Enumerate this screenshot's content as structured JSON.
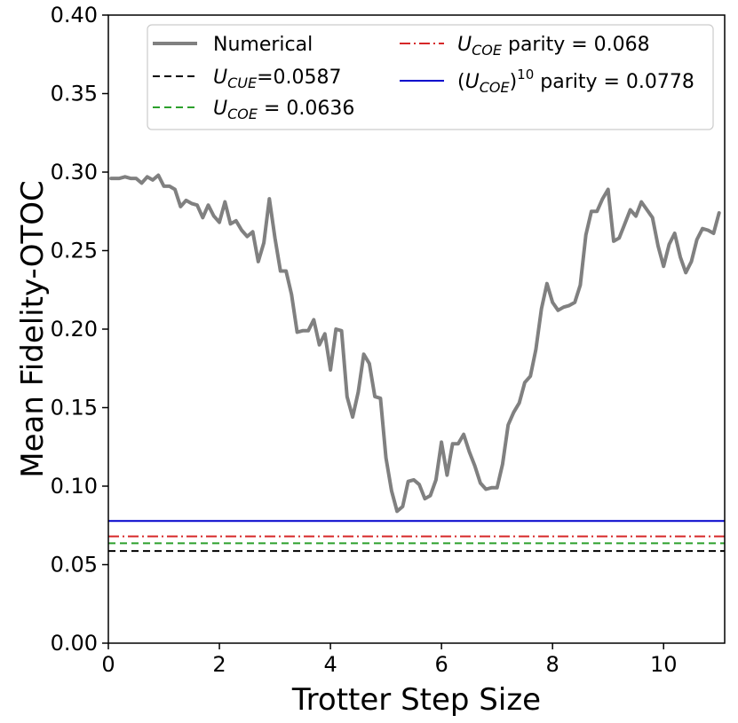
{
  "chart_data": {
    "type": "line",
    "xlabel": "Trotter Step Size",
    "ylabel": "Mean Fidelity-OTOC",
    "xlim": [
      0,
      11.1
    ],
    "ylim": [
      0,
      0.4
    ],
    "x_ticks": [
      0,
      2,
      4,
      6,
      8,
      10
    ],
    "x_tick_labels": [
      "0",
      "2",
      "4",
      "6",
      "8",
      "10"
    ],
    "y_ticks": [
      0,
      0.05,
      0.1,
      0.15,
      0.2,
      0.25,
      0.3,
      0.35,
      0.4
    ],
    "y_tick_labels": [
      "0.00",
      "0.05",
      "0.10",
      "0.15",
      "0.20",
      "0.25",
      "0.30",
      "0.35",
      "0.40"
    ],
    "grid": false,
    "legend_position": "top",
    "series": [
      {
        "name": "Numerical",
        "color": "#808080",
        "style": "solid-thick",
        "x": [
          0.05,
          0.2,
          0.3,
          0.4,
          0.5,
          0.6,
          0.7,
          0.8,
          0.9,
          1.0,
          1.1,
          1.2,
          1.3,
          1.4,
          1.5,
          1.6,
          1.7,
          1.8,
          1.9,
          2.0,
          2.1,
          2.2,
          2.3,
          2.4,
          2.5,
          2.6,
          2.7,
          2.8,
          2.9,
          3.0,
          3.1,
          3.2,
          3.3,
          3.4,
          3.5,
          3.6,
          3.7,
          3.8,
          3.9,
          4.0,
          4.1,
          4.2,
          4.3,
          4.4,
          4.5,
          4.6,
          4.7,
          4.8,
          4.9,
          5.0,
          5.1,
          5.2,
          5.3,
          5.4,
          5.5,
          5.6,
          5.7,
          5.8,
          5.9,
          6.0,
          6.1,
          6.2,
          6.3,
          6.4,
          6.5,
          6.6,
          6.7,
          6.8,
          6.9,
          7.0,
          7.1,
          7.2,
          7.3,
          7.4,
          7.5,
          7.6,
          7.7,
          7.8,
          7.9,
          8.0,
          8.1,
          8.2,
          8.3,
          8.4,
          8.5,
          8.6,
          8.7,
          8.8,
          8.9,
          9.0,
          9.1,
          9.2,
          9.3,
          9.4,
          9.5,
          9.6,
          9.7,
          9.8,
          9.9,
          10.0,
          10.1,
          10.2,
          10.3,
          10.4,
          10.5,
          10.6,
          10.7,
          10.8,
          10.9,
          11.0
        ],
        "y": [
          0.296,
          0.296,
          0.297,
          0.296,
          0.296,
          0.293,
          0.297,
          0.295,
          0.298,
          0.291,
          0.291,
          0.289,
          0.278,
          0.282,
          0.28,
          0.279,
          0.271,
          0.279,
          0.272,
          0.268,
          0.281,
          0.267,
          0.269,
          0.263,
          0.259,
          0.262,
          0.243,
          0.255,
          0.283,
          0.258,
          0.237,
          0.237,
          0.222,
          0.198,
          0.199,
          0.199,
          0.206,
          0.19,
          0.197,
          0.174,
          0.2,
          0.199,
          0.157,
          0.144,
          0.16,
          0.184,
          0.178,
          0.157,
          0.156,
          0.118,
          0.097,
          0.084,
          0.087,
          0.103,
          0.104,
          0.101,
          0.092,
          0.094,
          0.104,
          0.128,
          0.107,
          0.127,
          0.127,
          0.133,
          0.122,
          0.113,
          0.102,
          0.098,
          0.099,
          0.099,
          0.114,
          0.139,
          0.147,
          0.153,
          0.166,
          0.17,
          0.187,
          0.213,
          0.229,
          0.217,
          0.212,
          0.214,
          0.215,
          0.217,
          0.228,
          0.26,
          0.275,
          0.275,
          0.283,
          0.289,
          0.256,
          0.258,
          0.267,
          0.276,
          0.272,
          0.281,
          0.276,
          0.271,
          0.253,
          0.24,
          0.254,
          0.261,
          0.246,
          0.236,
          0.243,
          0.257,
          0.264,
          0.263,
          0.261,
          0.274
        ]
      },
      {
        "name": "U_CUE=0.0587",
        "color": "#000000",
        "style": "dashed",
        "y_const": 0.0587
      },
      {
        "name": "U_COE = 0.0636",
        "color": "#2ca02c",
        "style": "dashed",
        "y_const": 0.0636
      },
      {
        "name": "U_COE parity = 0.068",
        "color": "#d62728",
        "style": "dashdot",
        "y_const": 0.068
      },
      {
        "name": "(U_COE)^10 parity = 0.0778",
        "color": "#0000cc",
        "style": "solid",
        "y_const": 0.0778
      }
    ],
    "legend": [
      {
        "series": 0,
        "base": "Numerical",
        "sub": "",
        "sup": "",
        "tail": ""
      },
      {
        "series": 1,
        "base": "U",
        "sub": "CUE",
        "sup": "",
        "tail": "=0.0587",
        "open_paren": false
      },
      {
        "series": 2,
        "base": "U",
        "sub": "COE",
        "sup": "",
        "tail": " = 0.0636",
        "open_paren": false
      },
      {
        "series": 3,
        "base": "U",
        "sub": "COE",
        "sup": "",
        "tail": " parity = 0.068",
        "open_paren": false
      },
      {
        "series": 4,
        "base": "U",
        "sub": "COE",
        "sup": "10",
        "tail": " parity = 0.0778",
        "open_paren": true
      }
    ]
  }
}
